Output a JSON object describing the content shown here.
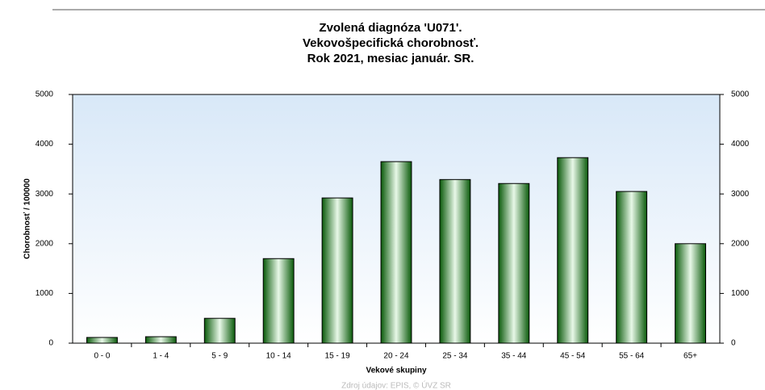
{
  "chart_data": {
    "type": "bar",
    "title": [
      "Zvolená diagnóza 'U071'.",
      "Vekovošpecifická chorobnosť.",
      "Rok 2021, mesiac január. SR."
    ],
    "x_label": "Vekové skupiny",
    "y_label": "Chorobnosť / 100000",
    "source": "Zdroj údajov: EPIS, © ÚVZ SR",
    "categories": [
      "0 - 0",
      "1 - 4",
      "5 - 9",
      "10 - 14",
      "15 - 19",
      "20 - 24",
      "25 - 34",
      "35 - 44",
      "45 - 54",
      "55 - 64",
      "65+"
    ],
    "values": [
      115,
      130,
      500,
      1700,
      2920,
      3650,
      3290,
      3210,
      3730,
      3050,
      2000
    ],
    "color": "#1e8a1e",
    "ylim": [
      0,
      5000
    ],
    "yticks": [
      0,
      1000,
      2000,
      3000,
      4000,
      5000
    ],
    "y2lim": [
      0,
      5000
    ],
    "y2ticks": [
      0,
      1000,
      2000,
      3000,
      4000,
      5000
    ]
  }
}
